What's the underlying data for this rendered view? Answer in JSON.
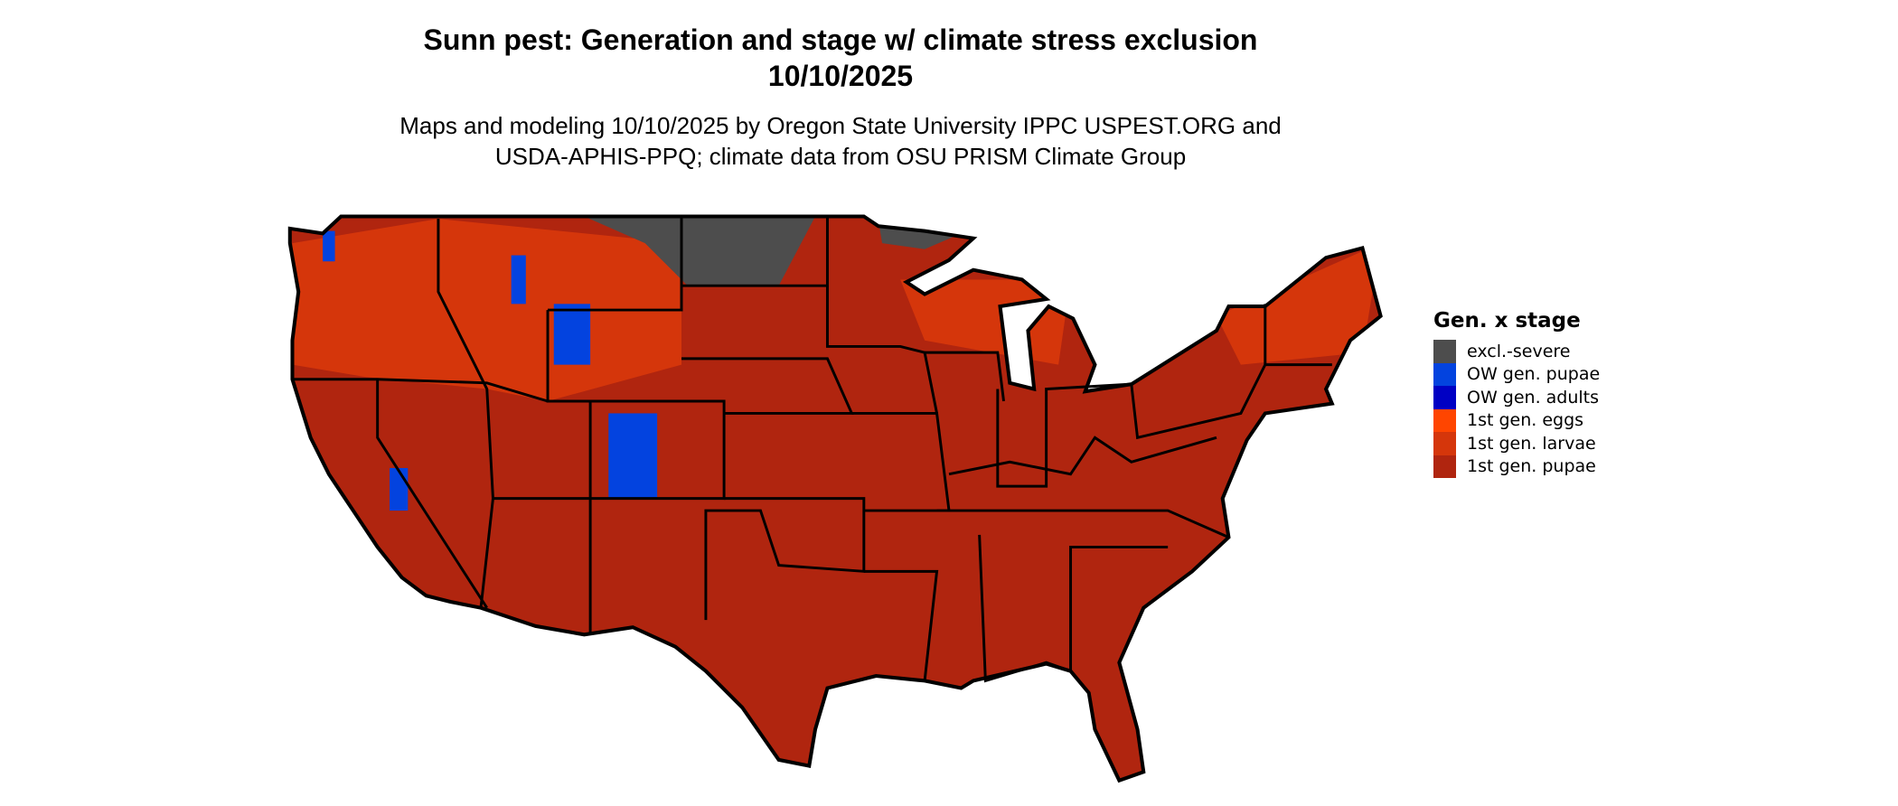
{
  "title": "Sunn pest: Generation and stage w/ climate stress exclusion",
  "date": "10/10/2025",
  "subtitle_line1": "Maps and modeling 10/10/2025 by Oregon State University IPPC USPEST.ORG and",
  "subtitle_line2": "USDA-APHIS-PPQ; climate data from OSU PRISM Climate Group",
  "legend": {
    "title": "Gen. x stage",
    "items": [
      {
        "label": "excl.-severe",
        "color": "#4d4d4d"
      },
      {
        "label": "OW gen. pupae",
        "color": "#0343df"
      },
      {
        "label": "OW gen. adults",
        "color": "#0000c4"
      },
      {
        "label": "1st gen. eggs",
        "color": "#ff4500"
      },
      {
        "label": "1st gen. larvae",
        "color": "#d5360b"
      },
      {
        "label": "1st gen. pupae",
        "color": "#b0250f"
      }
    ]
  },
  "map": {
    "region": "contiguous United States",
    "dominant_category": "1st gen. pupae"
  }
}
